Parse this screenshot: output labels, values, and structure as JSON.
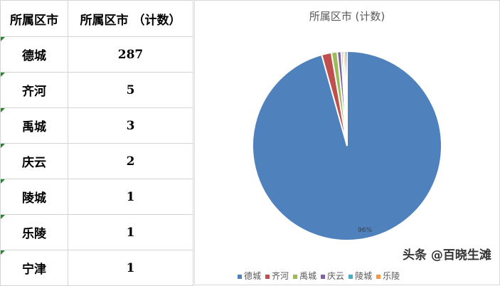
{
  "table": {
    "headers": [
      "所属区市",
      "所属区市 （计数）"
    ],
    "rows": [
      [
        "德城",
        "287"
      ],
      [
        "齐河",
        "5"
      ],
      [
        "禹城",
        "3"
      ],
      [
        "庆云",
        "2"
      ],
      [
        "陵城",
        "1"
      ],
      [
        "乐陵",
        "1"
      ],
      [
        "宁津",
        "1"
      ]
    ]
  },
  "chart_data": {
    "type": "pie",
    "title": "所属区市 (计数)",
    "categories": [
      "德城",
      "齐河",
      "禹城",
      "庆云",
      "陵城",
      "乐陵",
      "宁津"
    ],
    "values": [
      287,
      5,
      3,
      2,
      1,
      1,
      1
    ],
    "colors": [
      "#4f81bd",
      "#c0504d",
      "#9bbb59",
      "#8064a2",
      "#4bacc6",
      "#f79646",
      "#2c4d75"
    ],
    "data_labels": [
      "96%"
    ],
    "legend": "bottom"
  },
  "watermark": "头条 @百晓生滩"
}
